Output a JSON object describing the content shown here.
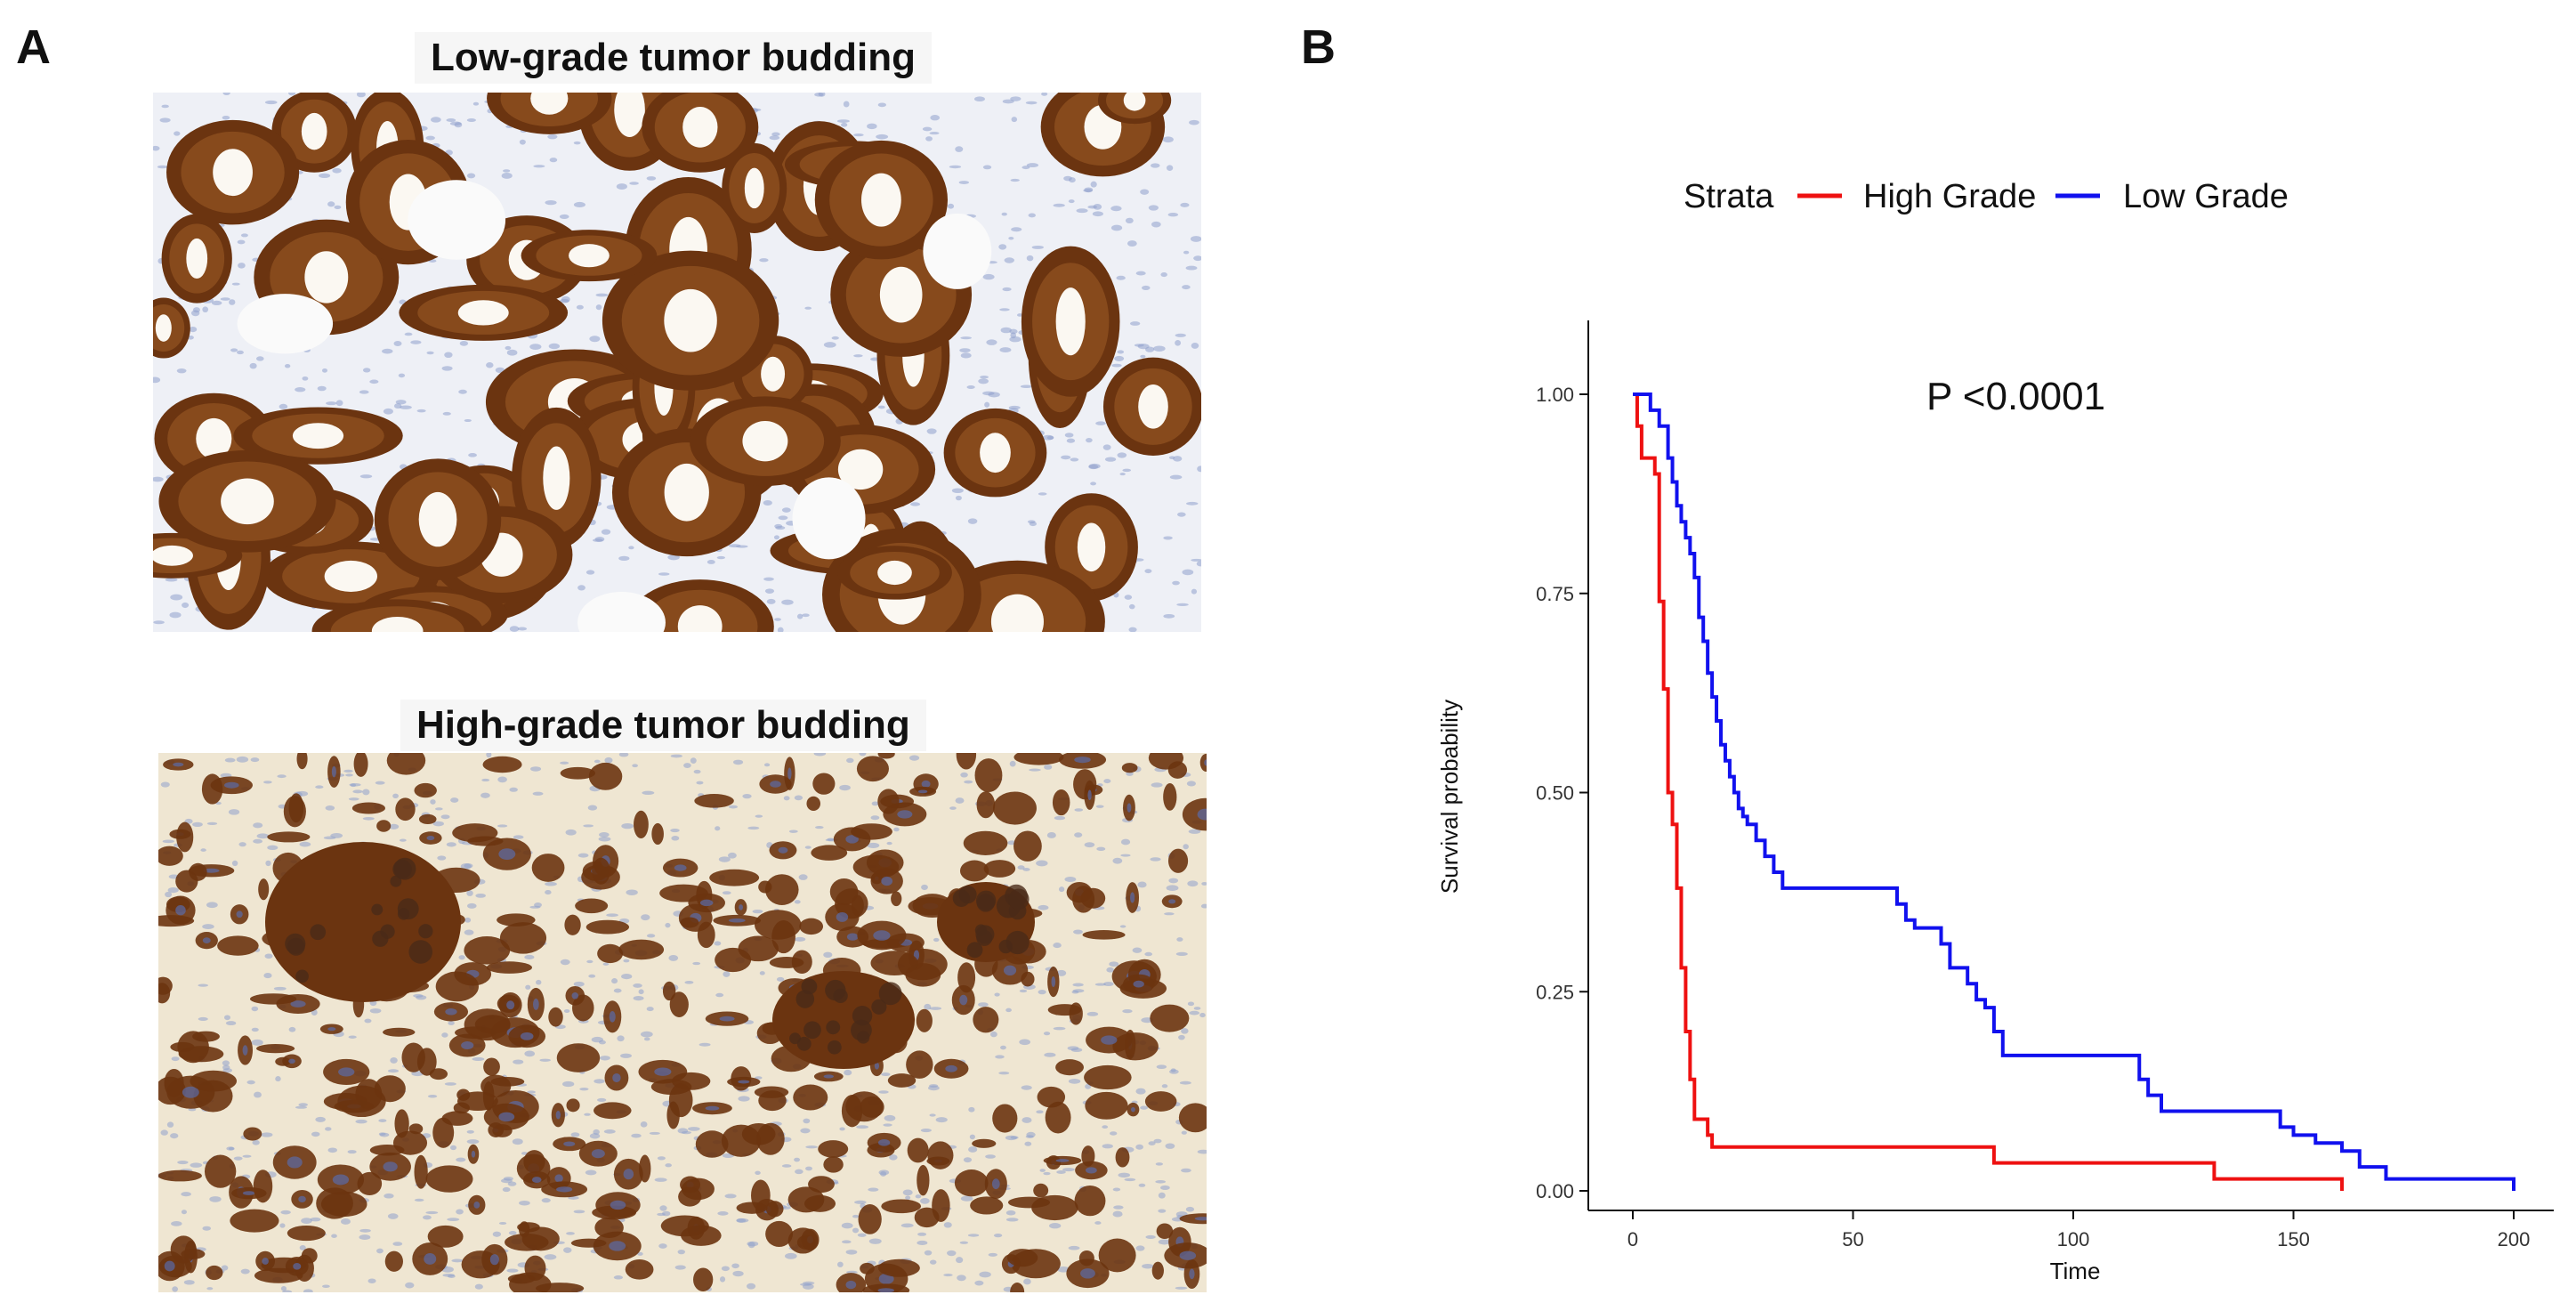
{
  "panel_a": {
    "letter": "A",
    "top_title": "Low-grade tumor budding",
    "bottom_title": "High-grade tumor budding"
  },
  "panel_b": {
    "letter": "B"
  },
  "colors": {
    "high_grade": "#ee1111",
    "low_grade": "#1111ee",
    "stain_dark": "#6b3410",
    "stain_mid": "#9a5a24",
    "tissue_low": "#eef0f6",
    "tissue_high": "#efe6d2",
    "nuclei": "#8fa0cc"
  },
  "chart_data": {
    "type": "line",
    "step": true,
    "xlabel": "Time",
    "ylabel": "Survival probability",
    "xlim": [
      0,
      200
    ],
    "ylim": [
      0,
      1
    ],
    "x_ticks": [
      0,
      50,
      100,
      150,
      200
    ],
    "y_ticks": [
      0.0,
      0.25,
      0.5,
      0.75,
      1.0
    ],
    "y_tick_labels": [
      "0.00",
      "0.25",
      "0.50",
      "0.75",
      "1.00"
    ],
    "grid": false,
    "legend": {
      "title": "Strata",
      "position": "top"
    },
    "annotation": "P <0.0001",
    "series": [
      {
        "name": "High Grade",
        "x": [
          0,
          1,
          2,
          5,
          6,
          7,
          8,
          9,
          10,
          11,
          12,
          13,
          14,
          15,
          17,
          18,
          20,
          82,
          132,
          161
        ],
        "y": [
          1.0,
          0.96,
          0.92,
          0.9,
          0.74,
          0.63,
          0.5,
          0.46,
          0.38,
          0.28,
          0.2,
          0.14,
          0.09,
          0.09,
          0.07,
          0.055,
          0.055,
          0.035,
          0.015,
          0.0
        ]
      },
      {
        "name": "Low Grade",
        "x": [
          0,
          4,
          6,
          8,
          9,
          10,
          11,
          12,
          13,
          14,
          15,
          16,
          17,
          18,
          19,
          20,
          21,
          22,
          23,
          24,
          25,
          26,
          28,
          30,
          32,
          34,
          36,
          60,
          62,
          64,
          70,
          72,
          76,
          78,
          80,
          82,
          84,
          115,
          117,
          120,
          124,
          147,
          150,
          155,
          161,
          165,
          171,
          200
        ],
        "y": [
          1.0,
          0.98,
          0.96,
          0.92,
          0.89,
          0.86,
          0.84,
          0.82,
          0.8,
          0.77,
          0.72,
          0.69,
          0.65,
          0.62,
          0.59,
          0.56,
          0.54,
          0.52,
          0.5,
          0.48,
          0.47,
          0.46,
          0.44,
          0.42,
          0.4,
          0.38,
          0.38,
          0.36,
          0.34,
          0.33,
          0.31,
          0.28,
          0.26,
          0.24,
          0.23,
          0.2,
          0.17,
          0.14,
          0.12,
          0.1,
          0.1,
          0.08,
          0.07,
          0.06,
          0.05,
          0.03,
          0.015,
          0.0
        ]
      }
    ]
  }
}
